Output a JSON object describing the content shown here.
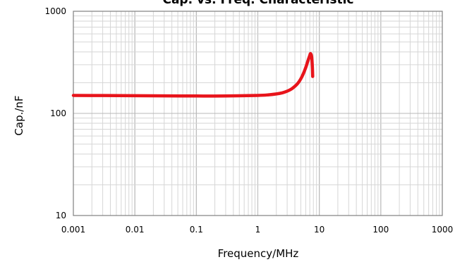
{
  "chart_data": {
    "type": "line",
    "title": "Cap. vs. Freq. Characteristic",
    "xlabel": "Frequency/MHz",
    "ylabel": "Cap./nF",
    "xscale": "log",
    "yscale": "log",
    "xlim": [
      0.001,
      1000
    ],
    "ylim": [
      10,
      1000
    ],
    "x_ticks": [
      "0.001",
      "0.01",
      "0.1",
      "1",
      "10",
      "100",
      "1000"
    ],
    "y_ticks": [
      "10",
      "100",
      "1000"
    ],
    "grid": true,
    "series": [
      {
        "color": "#e8141b",
        "x": [
          0.001,
          0.003,
          0.01,
          0.03,
          0.1,
          0.3,
          1,
          1.5,
          2,
          2.5,
          3,
          3.5,
          4,
          4.5,
          5,
          5.5,
          6,
          6.5,
          7,
          7.2,
          7.5,
          7.7,
          7.8
        ],
        "y": [
          150,
          149.5,
          149,
          148.5,
          148,
          148,
          150,
          152,
          155,
          159,
          165,
          173,
          184,
          198,
          218,
          245,
          280,
          325,
          370,
          385,
          360,
          290,
          230
        ]
      }
    ]
  }
}
